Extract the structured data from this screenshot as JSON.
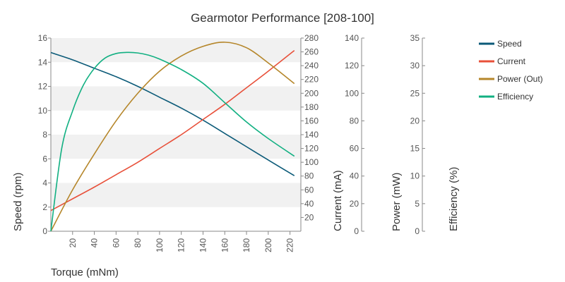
{
  "chart_data": {
    "type": "line",
    "title": "Gearmotor Performance [208-100]",
    "xlabel": "Torque (mNm)",
    "xlim": [
      0,
      230
    ],
    "x_ticks": [
      "20",
      "40",
      "60",
      "80",
      "100",
      "120",
      "140",
      "160",
      "180",
      "200",
      "220"
    ],
    "axes": [
      {
        "id": "speed",
        "label": "Speed (rpm)",
        "lim": [
          0,
          16
        ],
        "ticks": [
          "0",
          "2",
          "4",
          "6",
          "8",
          "10",
          "12",
          "14",
          "16"
        ]
      },
      {
        "id": "current",
        "label": "Current (mA)",
        "lim": [
          0,
          280
        ],
        "ticks": [
          "20",
          "40",
          "60",
          "80",
          "100",
          "120",
          "140",
          "160",
          "180",
          "200",
          "220",
          "240",
          "260",
          "280"
        ]
      },
      {
        "id": "power",
        "label": "Power (mW)",
        "lim": [
          0,
          140
        ],
        "ticks": [
          "0",
          "20",
          "40",
          "60",
          "80",
          "100",
          "120",
          "140"
        ]
      },
      {
        "id": "efficiency",
        "label": "Efficiency (%)",
        "lim": [
          0,
          35
        ],
        "ticks": [
          "0",
          "5",
          "10",
          "15",
          "20",
          "25",
          "30",
          "35"
        ]
      }
    ],
    "series": [
      {
        "name": "Speed",
        "axis": "speed",
        "color": "#0b5a78",
        "x": [
          0,
          20,
          40,
          60,
          80,
          100,
          120,
          140,
          160,
          180,
          200,
          224
        ],
        "y": [
          14.8,
          14.2,
          13.5,
          12.8,
          12.0,
          11.1,
          10.2,
          9.2,
          8.1,
          7.0,
          5.9,
          4.6
        ]
      },
      {
        "name": "Current",
        "axis": "current",
        "color": "#e8503a",
        "x": [
          0,
          20,
          40,
          60,
          80,
          100,
          120,
          140,
          160,
          180,
          200,
          224
        ],
        "y": [
          30,
          47,
          64,
          82,
          100,
          120,
          140,
          162,
          184,
          208,
          232,
          262
        ]
      },
      {
        "name": "Power (Out)",
        "axis": "power",
        "color": "#b5862a",
        "x": [
          0,
          20,
          40,
          60,
          80,
          100,
          120,
          140,
          160,
          180,
          200,
          224
        ],
        "y": [
          0,
          30,
          56,
          80,
          100,
          116,
          127,
          134,
          137,
          133,
          122,
          107
        ]
      },
      {
        "name": "Efficiency",
        "axis": "efficiency",
        "color": "#12b082",
        "x": [
          0,
          10,
          20,
          30,
          40,
          50,
          60,
          70,
          80,
          90,
          100,
          120,
          140,
          160,
          180,
          200,
          224
        ],
        "y": [
          0,
          15,
          21.8,
          26.5,
          29.5,
          31.4,
          32.2,
          32.4,
          32.3,
          31.9,
          31.2,
          29.3,
          26.8,
          23.3,
          19.8,
          16.8,
          13.6
        ]
      }
    ],
    "legend": "top-right",
    "grid": "alternating bands"
  }
}
